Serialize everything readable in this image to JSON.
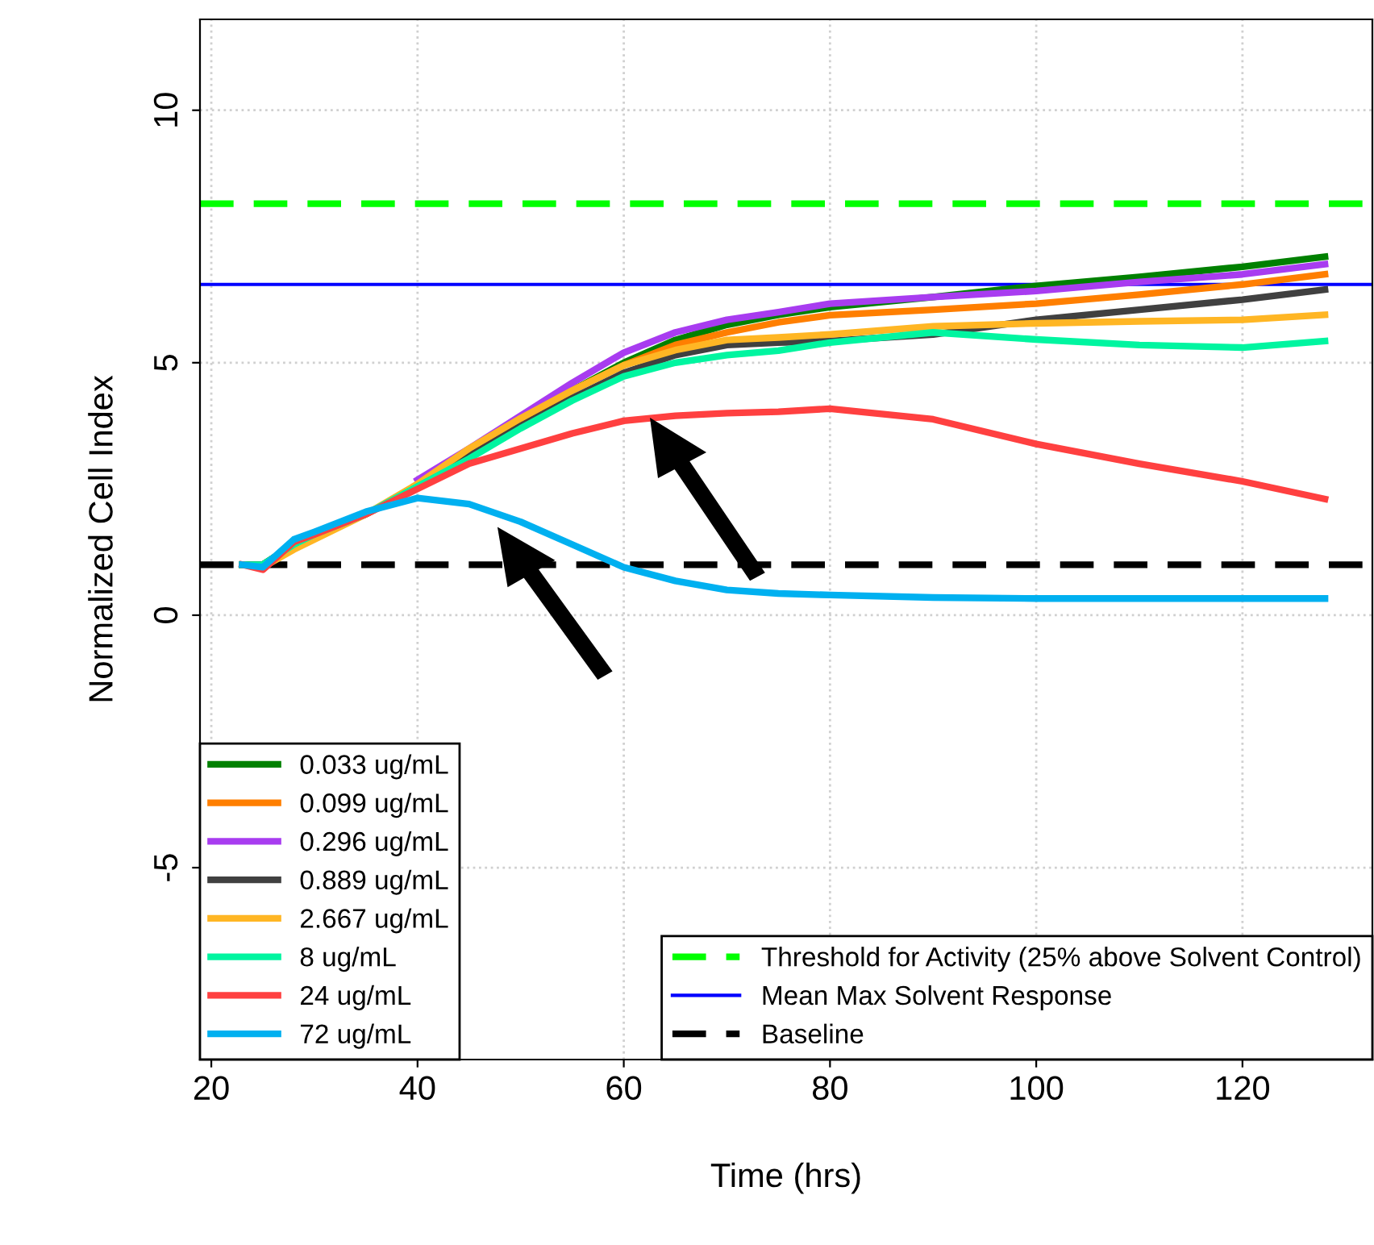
{
  "chart_data": {
    "type": "line",
    "xlabel": "Time (hrs)",
    "ylabel": "Normalized Cell Index",
    "x": [
      23,
      25,
      28,
      30,
      35,
      40,
      45,
      50,
      55,
      60,
      65,
      70,
      75,
      80,
      90,
      100,
      110,
      120,
      128
    ],
    "series": [
      {
        "name": "0.033 ug/mL",
        "color": "#008000",
        "values": [
          1.0,
          1.0,
          1.4,
          1.6,
          2.0,
          2.55,
          3.2,
          3.85,
          4.45,
          5.0,
          5.45,
          5.75,
          5.95,
          6.1,
          6.3,
          6.52,
          6.7,
          6.9,
          7.1
        ]
      },
      {
        "name": "0.099 ug/mL",
        "color": "#ff7f00",
        "values": [
          1.0,
          1.0,
          1.35,
          1.55,
          2.0,
          2.55,
          3.2,
          3.85,
          4.45,
          4.95,
          5.35,
          5.6,
          5.8,
          5.94,
          6.05,
          6.17,
          6.35,
          6.55,
          6.75
        ]
      },
      {
        "name": "0.296 ug/mL",
        "color": "#a83cf0",
        "values": [
          null,
          null,
          null,
          null,
          null,
          2.68,
          3.3,
          3.95,
          4.6,
          5.2,
          5.6,
          5.85,
          6.0,
          6.17,
          6.3,
          6.42,
          6.6,
          6.75,
          6.95
        ]
      },
      {
        "name": "0.889 ug/mL",
        "color": "#404040",
        "values": [
          1.0,
          1.0,
          1.4,
          1.6,
          2.0,
          2.55,
          3.15,
          3.75,
          4.3,
          4.8,
          5.15,
          5.35,
          5.4,
          5.43,
          5.56,
          5.85,
          6.05,
          6.25,
          6.45
        ]
      },
      {
        "name": "2.667 ug/mL",
        "color": "#ffb624",
        "values": [
          1.0,
          0.95,
          1.3,
          1.5,
          2.0,
          2.6,
          3.3,
          3.9,
          4.45,
          4.95,
          5.25,
          5.45,
          5.5,
          5.56,
          5.72,
          5.78,
          5.82,
          5.85,
          5.95
        ]
      },
      {
        "name": "8 ug/mL",
        "color": "#00f5a0",
        "values": [
          1.0,
          1.0,
          1.4,
          1.6,
          2.0,
          2.55,
          3.1,
          3.7,
          4.25,
          4.73,
          5.0,
          5.15,
          5.24,
          5.4,
          5.6,
          5.46,
          5.35,
          5.3,
          5.43
        ]
      },
      {
        "name": "24 ug/mL",
        "color": "#ff4040",
        "values": [
          1.0,
          0.9,
          1.45,
          1.6,
          2.0,
          2.5,
          3.0,
          3.3,
          3.6,
          3.85,
          3.95,
          4.0,
          4.03,
          4.09,
          3.88,
          3.39,
          3.0,
          2.65,
          2.3
        ]
      },
      {
        "name": "72 ug/mL",
        "color": "#00b0f0",
        "values": [
          1.0,
          0.95,
          1.5,
          1.65,
          2.05,
          2.32,
          2.2,
          1.85,
          1.4,
          0.95,
          0.68,
          0.5,
          0.43,
          0.4,
          0.35,
          0.33,
          0.33,
          0.33,
          0.33
        ]
      }
    ],
    "ref_lines": [
      {
        "axis": "y",
        "value": 8.15,
        "label": "Threshold for Activity (25% above Solvent Control)",
        "color": "#00ff00",
        "line_style": "dashed"
      },
      {
        "axis": "y",
        "value": 6.55,
        "label": "Mean Max Solvent Response",
        "color": "#0000ff",
        "line_style": "solid"
      },
      {
        "axis": "y",
        "value": 1.0,
        "label": "Baseline",
        "color": "#000000",
        "line_style": "dashed"
      }
    ],
    "xlim": [
      18.9,
      132.6
    ],
    "ylim": [
      -8.8,
      11.8
    ],
    "xticks": [
      20,
      40,
      60,
      80,
      100,
      120
    ],
    "yticks": [
      -5,
      0,
      5,
      10
    ],
    "grid": true,
    "legend": "bottom left",
    "line_style": "solid",
    "marker": "none"
  }
}
